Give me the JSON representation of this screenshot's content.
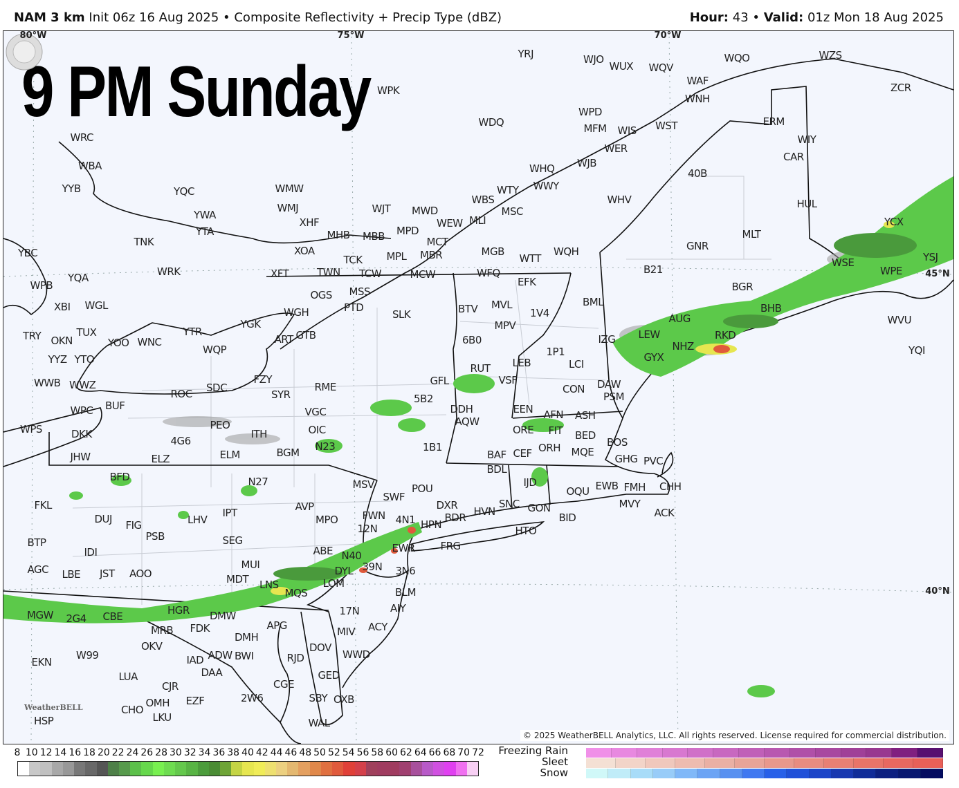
{
  "header": {
    "model_bold": "NAM 3 km",
    "init_text": " Init 06z 16 Aug 2025 • Composite Reflectivity + Precip Type (dBZ)",
    "hour_label": "Hour:",
    "hour_value": " 43 • ",
    "valid_label": "Valid:",
    "valid_value": " 01z Mon 18 Aug 2025"
  },
  "overlay_title": "9 PM Sunday",
  "grid_labels": [
    "80°W",
    "75°W",
    "70°W",
    "45°N",
    "40°N"
  ],
  "stations": [
    "YRJ",
    "WJO",
    "WUX",
    "WQV",
    "WQO",
    "WZS",
    "WAF",
    "WNH",
    "ZCR",
    "WPK",
    "WRC",
    "WDQ",
    "WPD",
    "MFM",
    "WIS",
    "WST",
    "ERM",
    "WIY",
    "CAR",
    "WER",
    "WJB",
    "WBA",
    "WHQ",
    "40B",
    "WWY",
    "YYB",
    "YQC",
    "WMW",
    "WMJ",
    "WTY",
    "WBS",
    "MSC",
    "WHV",
    "HUL",
    "YWA",
    "YTA",
    "WJT",
    "MWD",
    "MPD",
    "WEW",
    "MLI",
    "XHF",
    "YCX",
    "TNK",
    "MHB",
    "MBB",
    "MLT",
    "GNR",
    "YBC",
    "XOA",
    "MPL",
    "MBR",
    "MCT",
    "MGB",
    "WTT",
    "WQH",
    "TCK",
    "B21",
    "WSE",
    "YSJ",
    "YQA",
    "WRK",
    "XFT",
    "TWN",
    "TCW",
    "MSS",
    "MCW",
    "WFQ",
    "WPE",
    "WPB",
    "EFK",
    "BGR",
    "OGS",
    "PTD",
    "BML",
    "XBI",
    "WGL",
    "BTV",
    "MVL",
    "BHB",
    "SLK",
    "WGH",
    "1V4",
    "YGK",
    "MPV",
    "AUG",
    "WVU",
    "TRY",
    "OKN",
    "TUX",
    "YOO",
    "WNC",
    "YTR",
    "6B0",
    "ART",
    "GTB",
    "IZG",
    "LEW",
    "GYX",
    "NHZ",
    "RKD",
    "WQP",
    "YYZ",
    "YTO",
    "1P1",
    "LEB",
    "LCI",
    "YQI",
    "RUT",
    "WWB",
    "WWZ",
    "FZY",
    "GFL",
    "VSF",
    "DAW",
    "CON",
    "ROC",
    "SDC",
    "SYR",
    "RME",
    "PSM",
    "5B2",
    "BUF",
    "WPC",
    "DDH",
    "EEN",
    "AFN",
    "ASH",
    "VGC",
    "AQW",
    "WPS",
    "DKK",
    "PEO",
    "ITH",
    "OIC",
    "ORE",
    "FIT",
    "BED",
    "4G6",
    "N23",
    "1B1",
    "BOS",
    "ORH",
    "MQE",
    "JHW",
    "ELZ",
    "ELM",
    "BGM",
    "BAF",
    "CEF",
    "GHG",
    "PVC",
    "BFD",
    "N27",
    "BDL",
    "IJD",
    "CHH",
    "MSV",
    "POU",
    "SWF",
    "OQU",
    "EWB",
    "FMH",
    "MVY",
    "ACK",
    "FKL",
    "AVP",
    "IPT",
    "DXR",
    "HVN",
    "SNC",
    "GON",
    "BDR",
    "BID",
    "DUJ",
    "FIG",
    "LHV",
    "MPO",
    "FWN",
    "4N1",
    "HPN",
    "12N",
    "HTO",
    "PSB",
    "SEG",
    "BTP",
    "FRG",
    "EWR",
    "IDI",
    "ABE",
    "N40",
    "39N",
    "3N6",
    "AGC",
    "LBE",
    "JST",
    "AOO",
    "MUI",
    "DYL",
    "MDT",
    "LNS",
    "LOM",
    "BLM",
    "MQS",
    "MGW",
    "2G4",
    "CBE",
    "HGR",
    "DMW",
    "17N",
    "AIY",
    "FDK",
    "MRB",
    "MIV",
    "ACY",
    "APG",
    "DMH",
    "BWI",
    "OKV",
    "DOV",
    "WWD",
    "EKN",
    "W99",
    "IAD",
    "DAA",
    "ADW",
    "RJD",
    "GED",
    "LUA",
    "CJR",
    "CGE",
    "SBY",
    "OXB",
    "2W6",
    "OMH",
    "EZF",
    "CHO",
    "LKU",
    "HSP",
    "WAL"
  ],
  "logo_text": "WeatherBELL",
  "copyright": "© 2025 WeatherBELL Analytics, LLC. All rights reserved. License required for commercial distribution.",
  "legend": {
    "reflectivity_ticks": [
      "8",
      "10",
      "12",
      "14",
      "16",
      "18",
      "20",
      "22",
      "24",
      "26",
      "28",
      "30",
      "32",
      "34",
      "36",
      "38",
      "40",
      "42",
      "44",
      "46",
      "48",
      "50",
      "52",
      "54",
      "56",
      "58",
      "60",
      "62",
      "64",
      "66",
      "68",
      "70",
      "72"
    ],
    "reflectivity_colors": [
      "#ffffff",
      "#c8c8c8",
      "#c0c0c0",
      "#a8a8a8",
      "#989898",
      "#787878",
      "#686868",
      "#555555",
      "#4e8048",
      "#579a4c",
      "#5cc04a",
      "#66d84c",
      "#78f050",
      "#6edc50",
      "#64c84c",
      "#58b444",
      "#4c9c3c",
      "#4a8c34",
      "#6ea436",
      "#c4d444",
      "#e6e650",
      "#f0ec58",
      "#eee070",
      "#ecd080",
      "#e4b870",
      "#e4a060",
      "#e0884a",
      "#e07040",
      "#e05a3c",
      "#e04038",
      "#d4404a",
      "#a0405c",
      "#a03c60",
      "#a03c60",
      "#a04070",
      "#a8509c",
      "#b85ac8",
      "#d050e0",
      "#e040f0",
      "#f070f0",
      "#f8d0f4"
    ],
    "ptype_labels": [
      "Freezing Rain",
      "Sleet",
      "Snow"
    ],
    "freezing_rain_colors": [
      "#f090e8",
      "#e888e0",
      "#e080d8",
      "#d878d0",
      "#d070c8",
      "#c868c0",
      "#c060b8",
      "#b858b0",
      "#b050a8",
      "#a848a0",
      "#a04098",
      "#983890",
      "#802080",
      "#581070"
    ],
    "sleet_colors": [
      "#f4e0d4",
      "#f2d4c8",
      "#f0c8bc",
      "#eebcb0",
      "#eab0a4",
      "#e8a498",
      "#e8988c",
      "#e88c80",
      "#e88074",
      "#e87468",
      "#e86860",
      "#e86058"
    ],
    "snow_colors": [
      "#d0f8f8",
      "#c0ecf8",
      "#a8dcf8",
      "#98ccf8",
      "#80b8f8",
      "#6ca4f4",
      "#5890f0",
      "#4078f0",
      "#2860e8",
      "#2050d8",
      "#1c44c8",
      "#1838b0",
      "#102c98",
      "#0c2080",
      "#081870",
      "#040c60"
    ]
  }
}
